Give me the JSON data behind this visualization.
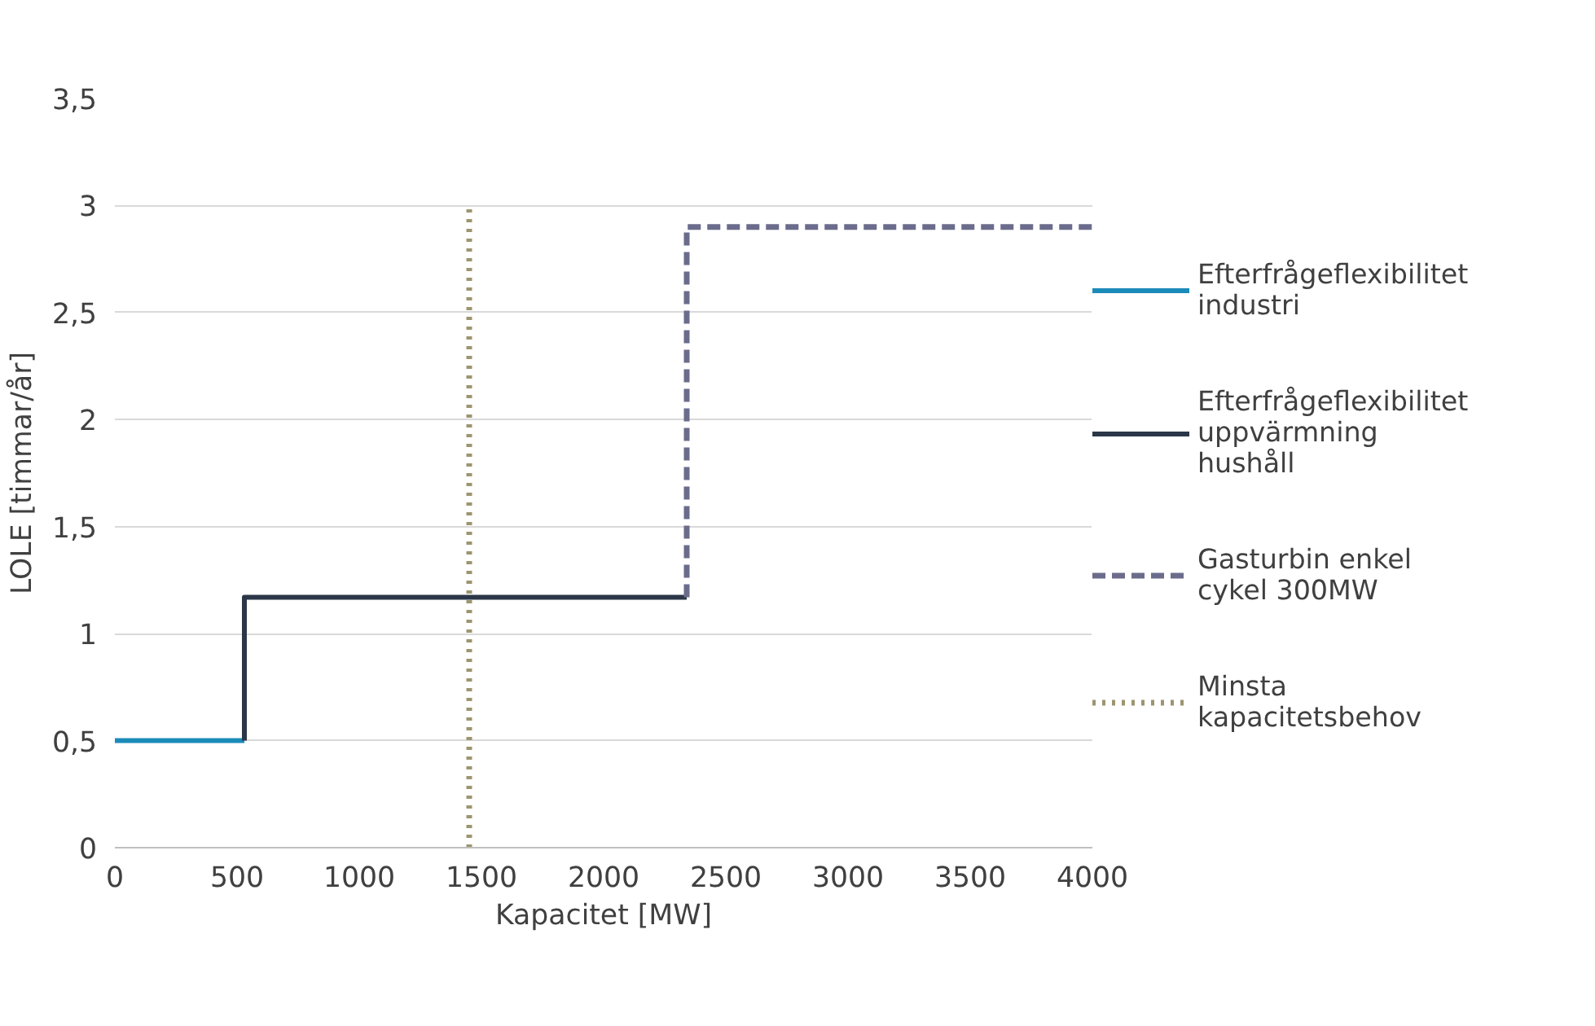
{
  "chart_data": {
    "type": "line",
    "xlabel": "Kapacitet [MW]",
    "ylabel": "LOLE [timmar/år]",
    "xlim": [
      0,
      4000
    ],
    "xticks": [
      0,
      500,
      1000,
      1500,
      2000,
      2500,
      3000,
      3500,
      4000
    ],
    "ylim": [
      0,
      3.5
    ],
    "yticks": [
      0,
      {
        "value": 0.5,
        "label": "0,5"
      },
      1,
      {
        "value": 1.5,
        "label": "1,5"
      },
      2,
      {
        "value": 2.5,
        "label": "2,5"
      },
      3,
      {
        "value": 3.5,
        "label": "3,5"
      }
    ],
    "grid": "y",
    "legend": "right",
    "series": [
      {
        "name": "Efterfrågeflexibilitet industri",
        "color": "#1b8bb9",
        "x": [
          0,
          530
        ],
        "values": [
          0.5,
          0.5
        ],
        "line_style": "solid"
      },
      {
        "name": "Efterfrågeflexibilitet uppvärmning hushåll",
        "color": "#2b3748",
        "x": [
          530,
          530,
          2340
        ],
        "values": [
          0.5,
          1.17,
          1.17
        ],
        "line_style": "solid"
      },
      {
        "name": "Gasturbin enkel cykel 300MW",
        "color": "#6b6c8c",
        "x": [
          2340,
          2340,
          4000
        ],
        "values": [
          1.17,
          2.9,
          2.9
        ],
        "line_style": "dashed"
      },
      {
        "name": "Minsta kapacitetsbehov",
        "color": "#9c9570",
        "x": [
          1450,
          1450
        ],
        "values": [
          0,
          3
        ],
        "line_style": "dotted"
      }
    ]
  }
}
